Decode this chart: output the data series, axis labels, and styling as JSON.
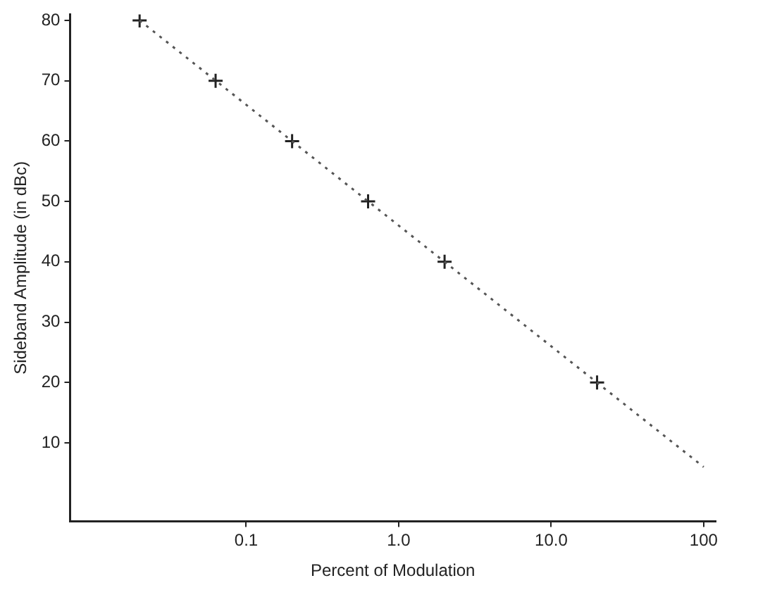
{
  "chart_data": {
    "type": "line",
    "xlabel": "Percent of Modulation",
    "ylabel": "Sideband Amplitude (in dBc)",
    "log": "x",
    "grid": false,
    "legend": false,
    "xlim": [
      0.007,
      120
    ],
    "ylim": [
      -3,
      81
    ],
    "xticks": [
      0.1,
      {
        "value": 1,
        "label": "1.0"
      },
      {
        "value": 10,
        "label": "10.0"
      },
      100
    ],
    "yticks": [
      10,
      20,
      30,
      40,
      50,
      60,
      70,
      80
    ],
    "series": [
      {
        "type": "line",
        "color": "#555555",
        "line_style": "dotted",
        "marker": "none",
        "x": [
          0.02,
          100
        ],
        "values": [
          80,
          6
        ]
      },
      {
        "type": "scatter",
        "color": "#222222",
        "marker": "cross",
        "x": [
          0.02,
          0.063,
          0.2,
          0.63,
          2,
          20
        ],
        "values": [
          80,
          70,
          60,
          50,
          40,
          20
        ]
      }
    ]
  }
}
